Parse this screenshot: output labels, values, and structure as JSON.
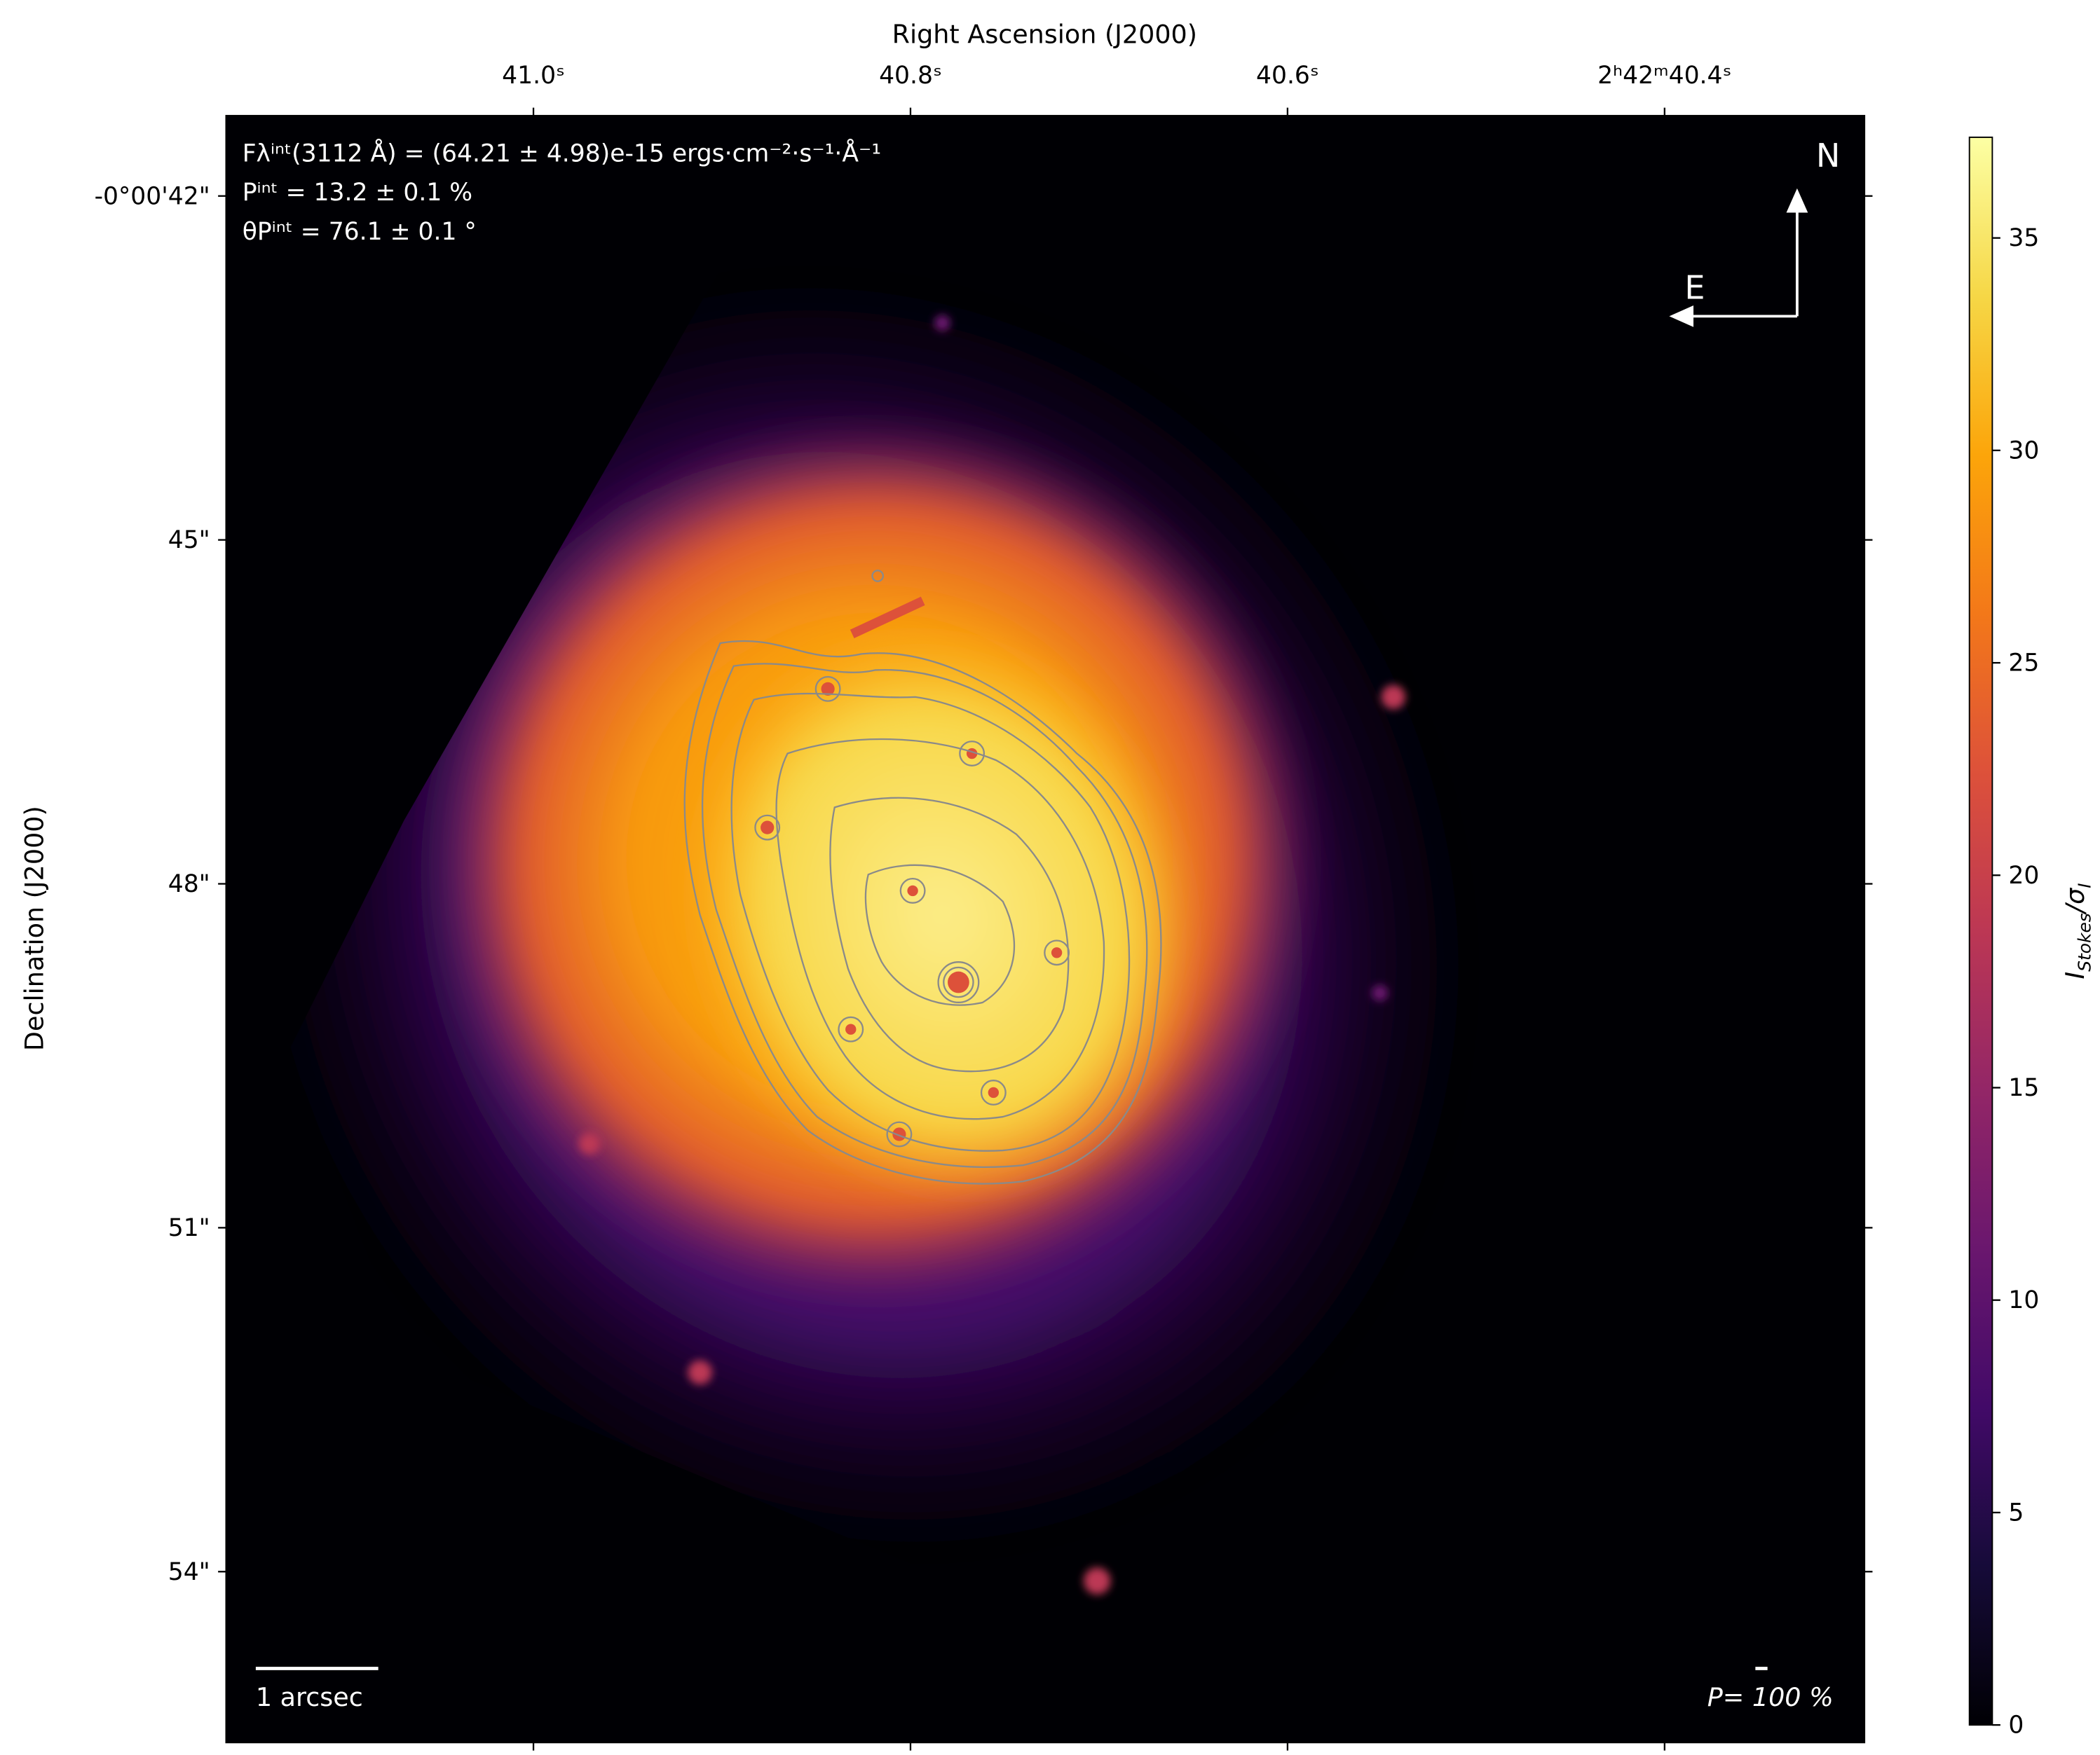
{
  "chart_data": {
    "type": "image",
    "x_label": "Right Ascension (J2000)",
    "y_label": "Declination (J2000)",
    "xlim": [
      41.163,
      40.294
    ],
    "xticks": [
      {
        "value": 41.0,
        "label": "41.0ˢ"
      },
      {
        "value": 40.8,
        "label": "40.8ˢ"
      },
      {
        "value": 40.6,
        "label": "40.6ˢ"
      },
      {
        "value": 40.4,
        "label": "2ʰ42ᵐ40.4ˢ"
      }
    ],
    "ylim": [
      55.49,
      41.3
    ],
    "yticks": [
      {
        "value": 42,
        "label": "-0°00'42\""
      },
      {
        "value": 45,
        "label": "45\""
      },
      {
        "value": 48,
        "label": "48\""
      },
      {
        "value": 51,
        "label": "51\""
      },
      {
        "value": 54,
        "label": "54\""
      }
    ],
    "colorbar": {
      "label": [
        "I",
        "Stokes",
        "/σ",
        "I"
      ],
      "colormap": "inferno",
      "clim": [
        0,
        37.37
      ],
      "ticks": [
        0,
        5,
        10,
        15,
        20,
        25,
        30,
        35
      ]
    },
    "annotations": [
      "Fλⁱⁿᵗ(3112 Å) = (64.21 ± 4.98)e-15 ergs·cm⁻²·s⁻¹·Å⁻¹",
      "Pⁱⁿᵗ = 13.2 ± 0.1 %",
      "θPⁱⁿᵗ = 76.1 ± 0.1 °"
    ],
    "scale_bar_label": "1 arcsec",
    "polarization_scale_label": "P= 100 %",
    "compass": {
      "north": "N",
      "east": "E"
    }
  }
}
